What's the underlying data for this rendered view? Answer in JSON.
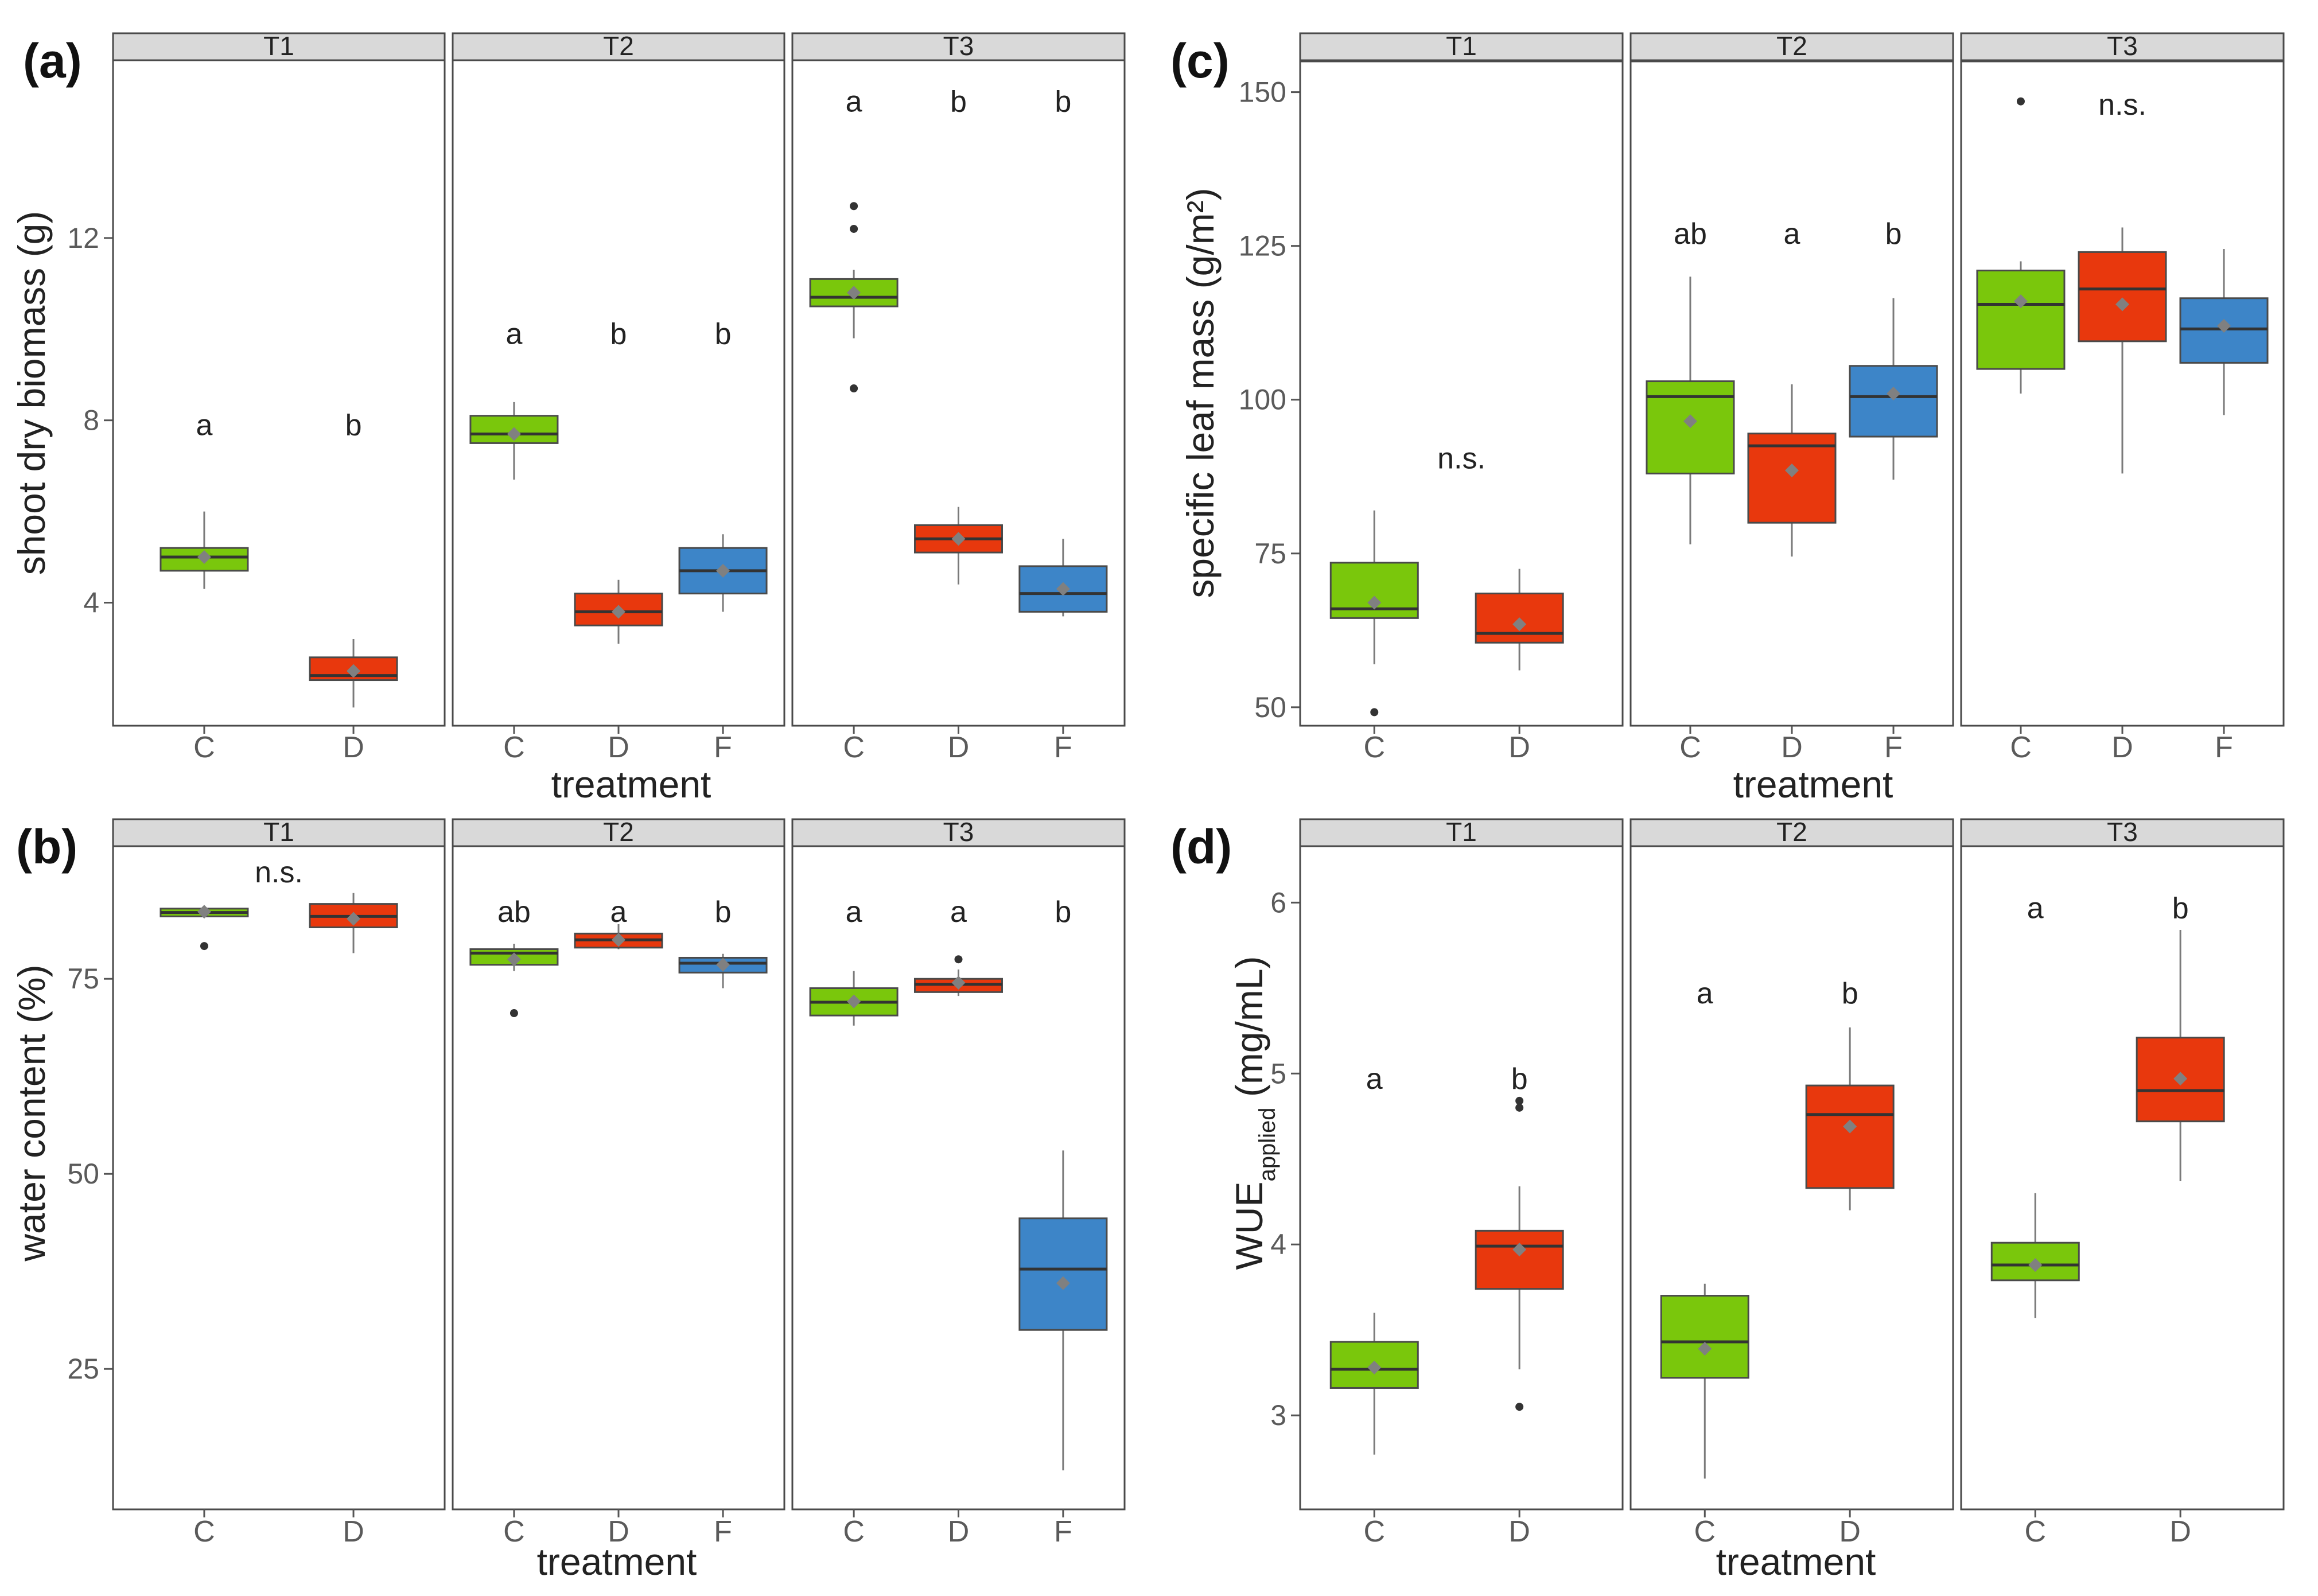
{
  "colors": {
    "C": "#7ac70c",
    "D": "#e8380d",
    "F": "#3d85c8"
  },
  "chart_data": [
    {
      "id": "a",
      "panel_label": "(a)",
      "type": "boxplot",
      "ylabel": "shoot dry biomass (g)",
      "xlabel": "treatment",
      "ylim": [
        1.3,
        15.9
      ],
      "yticks": [
        4,
        8,
        12
      ],
      "facets": [
        {
          "label": "T1",
          "groups": [
            {
              "cat": "C",
              "lo": 4.3,
              "q1": 4.7,
              "med": 5.0,
              "q3": 5.2,
              "hi": 6.0,
              "mean": 5.0,
              "outliers": [],
              "sig": "a",
              "sigY": 7.9
            },
            {
              "cat": "D",
              "lo": 1.7,
              "q1": 2.3,
              "med": 2.4,
              "q3": 2.8,
              "hi": 3.2,
              "mean": 2.5,
              "outliers": [],
              "sig": "b",
              "sigY": 7.9
            }
          ]
        },
        {
          "label": "T2",
          "groups": [
            {
              "cat": "C",
              "lo": 6.7,
              "q1": 7.5,
              "med": 7.7,
              "q3": 8.1,
              "hi": 8.4,
              "mean": 7.7,
              "outliers": [],
              "sig": "a",
              "sigY": 9.9
            },
            {
              "cat": "D",
              "lo": 3.1,
              "q1": 3.5,
              "med": 3.8,
              "q3": 4.2,
              "hi": 4.5,
              "mean": 3.8,
              "outliers": [],
              "sig": "b",
              "sigY": 9.9
            },
            {
              "cat": "F",
              "lo": 3.8,
              "q1": 4.2,
              "med": 4.7,
              "q3": 5.2,
              "hi": 5.5,
              "mean": 4.7,
              "outliers": [],
              "sig": "b",
              "sigY": 9.9
            }
          ]
        },
        {
          "label": "T3",
          "groups": [
            {
              "cat": "C",
              "lo": 9.8,
              "q1": 10.5,
              "med": 10.7,
              "q3": 11.1,
              "hi": 11.3,
              "mean": 10.8,
              "outliers": [
                12.7,
                12.2,
                8.7
              ],
              "sig": "a",
              "sigY": 15.0
            },
            {
              "cat": "D",
              "lo": 4.4,
              "q1": 5.1,
              "med": 5.4,
              "q3": 5.7,
              "hi": 6.1,
              "mean": 5.4,
              "outliers": [],
              "sig": "b",
              "sigY": 15.0
            },
            {
              "cat": "F",
              "lo": 3.7,
              "q1": 3.8,
              "med": 4.2,
              "q3": 4.8,
              "hi": 5.4,
              "mean": 4.3,
              "outliers": [],
              "sig": "b",
              "sigY": 15.0
            }
          ]
        }
      ]
    },
    {
      "id": "b",
      "panel_label": "(b)",
      "type": "boxplot",
      "ylabel": "water content (%)",
      "xlabel": "treatment",
      "ylim": [
        7,
        92
      ],
      "yticks": [
        25,
        50,
        75
      ],
      "facets": [
        {
          "label": "T1",
          "groups": [
            {
              "cat": "C",
              "lo": 82.8,
              "q1": 83.0,
              "med": 83.5,
              "q3": 84.0,
              "hi": 84.2,
              "mean": 83.6,
              "outliers": [
                79.2
              ],
              "sig": "n.s.",
              "sigY": 88.7,
              "sigMid": true
            },
            {
              "cat": "D",
              "lo": 78.3,
              "q1": 81.6,
              "med": 83.0,
              "q3": 84.6,
              "hi": 86.0,
              "mean": 82.7,
              "outliers": [],
              "sig": "",
              "sigY": 88.7
            }
          ]
        },
        {
          "label": "T2",
          "groups": [
            {
              "cat": "C",
              "lo": 76.0,
              "q1": 76.8,
              "med": 78.3,
              "q3": 78.8,
              "hi": 79.5,
              "mean": 77.5,
              "outliers": [
                70.6
              ],
              "sig": "ab",
              "sigY": 83.6
            },
            {
              "cat": "D",
              "lo": 78.8,
              "q1": 79.0,
              "med": 80.0,
              "q3": 80.8,
              "hi": 82.0,
              "mean": 80.0,
              "outliers": [],
              "sig": "a",
              "sigY": 83.6
            },
            {
              "cat": "F",
              "lo": 73.8,
              "q1": 75.8,
              "med": 77.0,
              "q3": 77.7,
              "hi": 78.2,
              "mean": 76.8,
              "outliers": [],
              "sig": "b",
              "sigY": 83.6
            }
          ]
        },
        {
          "label": "T3",
          "groups": [
            {
              "cat": "C",
              "lo": 69.0,
              "q1": 70.3,
              "med": 72.0,
              "q3": 73.8,
              "hi": 76.0,
              "mean": 72.1,
              "outliers": [],
              "sig": "a",
              "sigY": 83.6
            },
            {
              "cat": "D",
              "lo": 72.8,
              "q1": 73.3,
              "med": 74.3,
              "q3": 75.0,
              "hi": 76.2,
              "mean": 74.5,
              "outliers": [
                77.5
              ],
              "sig": "a",
              "sigY": 83.6
            },
            {
              "cat": "F",
              "lo": 12.0,
              "q1": 30.0,
              "med": 37.8,
              "q3": 44.3,
              "hi": 53.0,
              "mean": 36.0,
              "outliers": [],
              "sig": "b",
              "sigY": 83.6
            }
          ]
        }
      ]
    },
    {
      "id": "c",
      "panel_label": "(c)",
      "type": "boxplot",
      "ylabel": "specific leaf mass (g/m²)",
      "xlabel": "treatment",
      "ylim": [
        47,
        155
      ],
      "yticks": [
        50,
        75,
        100,
        125,
        150
      ],
      "facets": [
        {
          "label": "T1",
          "groups": [
            {
              "cat": "C",
              "lo": 57.0,
              "q1": 64.5,
              "med": 66.0,
              "q3": 73.5,
              "hi": 82.0,
              "mean": 67.0,
              "outliers": [
                49.2
              ],
              "sig": "",
              "sigY": 120
            },
            {
              "cat": "D",
              "lo": 56.0,
              "q1": 60.5,
              "med": 62.0,
              "q3": 68.5,
              "hi": 72.5,
              "mean": 63.5,
              "outliers": [],
              "sig": "n.s.",
              "sigY": 90.5,
              "sigMid": true
            }
          ]
        },
        {
          "label": "T2",
          "groups": [
            {
              "cat": "C",
              "lo": 76.5,
              "q1": 88.0,
              "med": 100.5,
              "q3": 103.0,
              "hi": 120.0,
              "mean": 96.5,
              "outliers": [],
              "sig": "ab",
              "sigY": 127.0
            },
            {
              "cat": "D",
              "lo": 74.5,
              "q1": 80.0,
              "med": 92.5,
              "q3": 94.5,
              "hi": 102.5,
              "mean": 88.5,
              "outliers": [],
              "sig": "a",
              "sigY": 127.0
            },
            {
              "cat": "F",
              "lo": 87.0,
              "q1": 94.0,
              "med": 100.5,
              "q3": 105.5,
              "hi": 116.5,
              "mean": 101.0,
              "outliers": [],
              "sig": "b",
              "sigY": 127.0
            }
          ]
        },
        {
          "label": "T3",
          "groups": [
            {
              "cat": "C",
              "lo": 101.0,
              "q1": 105.0,
              "med": 115.5,
              "q3": 121.0,
              "hi": 122.5,
              "mean": 116.0,
              "outliers": [
                148.5
              ],
              "sig": "",
              "sigY": 147
            },
            {
              "cat": "D",
              "lo": 88.0,
              "q1": 109.5,
              "med": 118.0,
              "q3": 124.0,
              "hi": 128.0,
              "mean": 115.5,
              "outliers": [],
              "sig": "n.s.",
              "sigY": 148.0
            },
            {
              "cat": "F",
              "lo": 97.5,
              "q1": 106.0,
              "med": 111.5,
              "q3": 116.5,
              "hi": 124.5,
              "mean": 112.0,
              "outliers": [],
              "sig": "",
              "sigY": 147
            }
          ]
        }
      ]
    },
    {
      "id": "d",
      "panel_label": "(d)",
      "type": "boxplot",
      "ylabel": "WUE",
      "ylabel_sub": "applied",
      "ylabel_unit": " (mg/mL)",
      "xlabel": "treatment",
      "ylim": [
        2.45,
        6.33
      ],
      "yticks": [
        3,
        4,
        5,
        6
      ],
      "facets": [
        {
          "label": "T1",
          "groups": [
            {
              "cat": "C",
              "lo": 2.77,
              "q1": 3.16,
              "med": 3.27,
              "q3": 3.43,
              "hi": 3.6,
              "mean": 3.28,
              "outliers": [],
              "sig": "a",
              "sigY": 4.97
            },
            {
              "cat": "D",
              "lo": 3.27,
              "q1": 3.74,
              "med": 3.99,
              "q3": 4.08,
              "hi": 4.34,
              "mean": 3.97,
              "outliers": [
                4.8,
                4.84,
                3.05
              ],
              "sig": "b",
              "sigY": 4.97
            }
          ]
        },
        {
          "label": "T2",
          "groups": [
            {
              "cat": "C",
              "lo": 2.63,
              "q1": 3.22,
              "med": 3.43,
              "q3": 3.7,
              "hi": 3.77,
              "mean": 3.39,
              "outliers": [],
              "sig": "a",
              "sigY": 5.47
            },
            {
              "cat": "D",
              "lo": 4.2,
              "q1": 4.33,
              "med": 4.76,
              "q3": 4.93,
              "hi": 5.27,
              "mean": 4.69,
              "outliers": [],
              "sig": "b",
              "sigY": 5.47
            }
          ]
        },
        {
          "label": "T3",
          "groups": [
            {
              "cat": "C",
              "lo": 3.57,
              "q1": 3.79,
              "med": 3.88,
              "q3": 4.01,
              "hi": 4.3,
              "mean": 3.88,
              "outliers": [],
              "sig": "a",
              "sigY": 5.97
            },
            {
              "cat": "D",
              "lo": 4.37,
              "q1": 4.72,
              "med": 4.9,
              "q3": 5.21,
              "hi": 5.84,
              "mean": 4.97,
              "outliers": [],
              "sig": "b",
              "sigY": 5.97
            }
          ]
        }
      ]
    }
  ]
}
